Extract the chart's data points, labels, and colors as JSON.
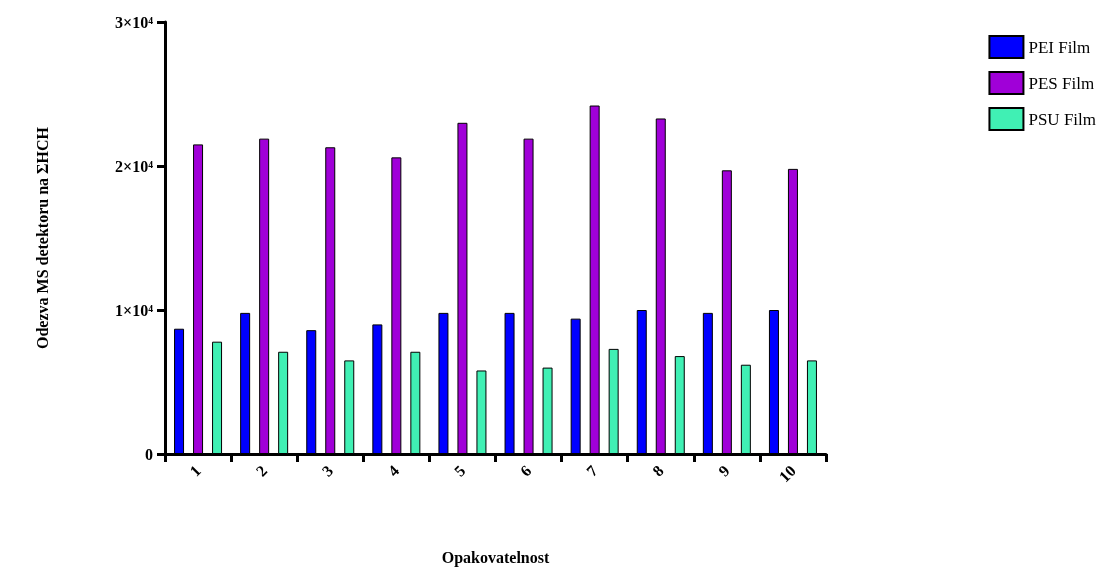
{
  "chart_data": {
    "type": "bar",
    "xlabel": "Opakovatelnost",
    "ylabel": "Odezva MS detektoru na ΣHCH",
    "categories": [
      "1",
      "2",
      "3",
      "4",
      "5",
      "6",
      "7",
      "8",
      "9",
      "10"
    ],
    "series": [
      {
        "name": "PEI Film",
        "color": "#0000ff",
        "values": [
          8700,
          9800,
          8600,
          9000,
          9800,
          9800,
          9400,
          10000,
          9800,
          10000
        ]
      },
      {
        "name": "PES Film",
        "color": "#a000d8",
        "values": [
          21500,
          21900,
          21300,
          20600,
          23000,
          21900,
          24200,
          23300,
          19700,
          19800
        ]
      },
      {
        "name": "PSU Film",
        "color": "#40f0b4",
        "values": [
          7800,
          7100,
          6500,
          7100,
          5800,
          6000,
          7300,
          6800,
          6200,
          6500
        ]
      }
    ],
    "ylim": [
      0,
      30000
    ],
    "yticks": [
      0,
      {
        "value": 10000,
        "label": "1×10⁴"
      },
      {
        "value": 20000,
        "label": "2×10⁴"
      },
      {
        "value": 30000,
        "label": "3×10⁴"
      }
    ],
    "grid": false,
    "legend": "top right"
  }
}
